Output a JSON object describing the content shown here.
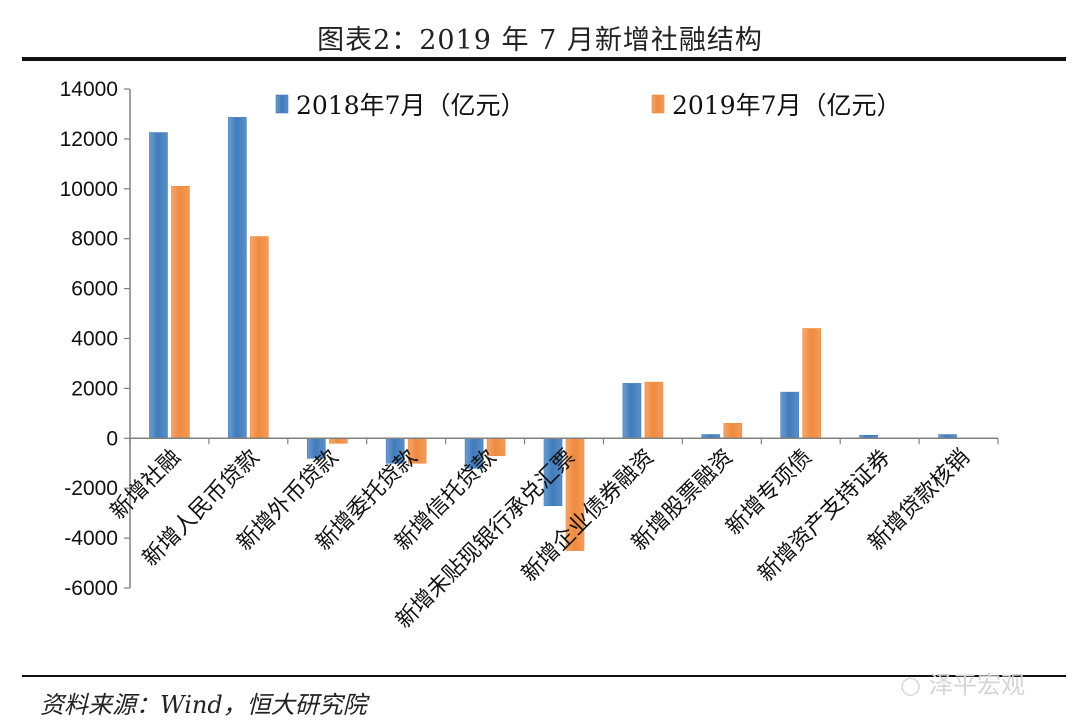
{
  "title": "图表2：2019 年 7 月新增社融结构",
  "source": "资料来源：Wind，恒大研究院",
  "watermark": "泽平宏观",
  "watermark_icon": "wechat-icon",
  "colors": {
    "series_2018": "#3f7bbd",
    "series_2019": "#f08a3e",
    "axis": "#808080",
    "rule": "#111111"
  },
  "chart_data": {
    "type": "bar",
    "title": "图表2：2019 年 7 月新增社融结构",
    "xlabel": "",
    "ylabel": "",
    "ylim": [
      -6000,
      14000
    ],
    "yticks": [
      14000,
      12000,
      10000,
      8000,
      6000,
      4000,
      2000,
      0,
      -2000,
      -4000,
      -6000
    ],
    "grid": false,
    "legend_position": "top",
    "categories": [
      "新增社融",
      "新增人民币贷款",
      "新增外币贷款",
      "新增委托贷款",
      "新增信托贷款",
      "新增未贴现银行承兑汇票",
      "新增企业债券融资",
      "新增股票融资",
      "新增专项债",
      "新增资产支持证券",
      "新增贷款核销"
    ],
    "series": [
      {
        "name": "2018年7月（亿元）",
        "values": [
          12254,
          12861,
          -800,
          -1000,
          -1200,
          -2700,
          2200,
          150,
          1850,
          120,
          150
        ]
      },
      {
        "name": "2019年7月（亿元）",
        "values": [
          10100,
          8086,
          -200,
          -1000,
          -700,
          -4500,
          2250,
          600,
          4400,
          0,
          0
        ]
      }
    ]
  }
}
